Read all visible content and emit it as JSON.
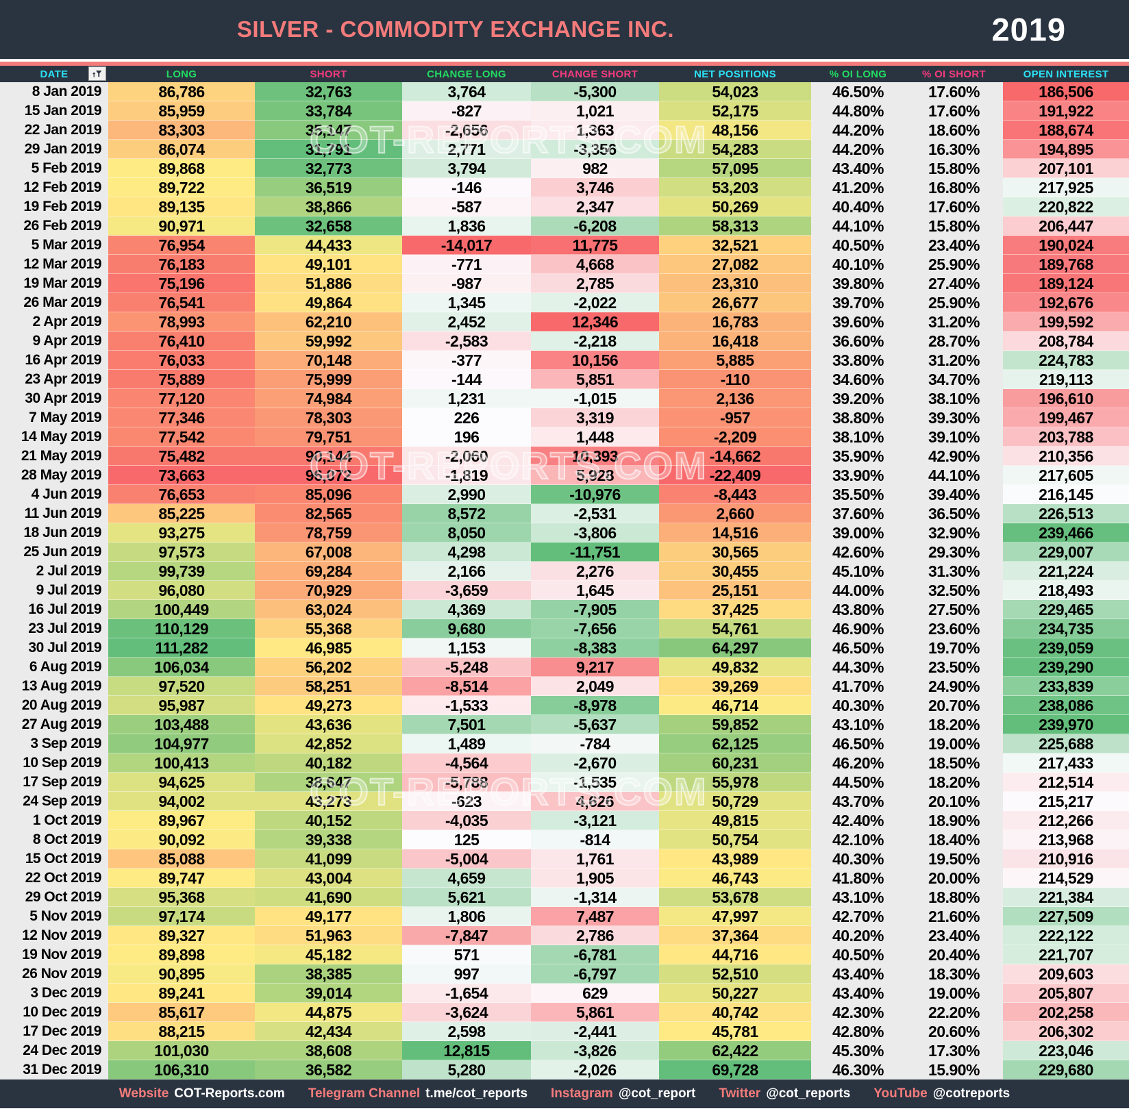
{
  "header": {
    "title": "SILVER - COMMODITY EXCHANGE INC.",
    "year": "2019"
  },
  "watermark": {
    "text": "COT-REPORTS.COM"
  },
  "colors": {
    "background_navy": "#2A3441",
    "accent_salmon": "#F47B7B",
    "column_grey": "#ECEBEB",
    "header_text_cyan": "#2BE2F5",
    "header_text_green": "#21DB61",
    "header_text_pink": "#F43A7C",
    "heatmap": {
      "red": "#F8696B",
      "yellow": "#FFEB84",
      "green": "#63BE7B",
      "white": "#FCFCFF"
    }
  },
  "icons": {
    "date_filter": "autofilter-funnel-icon"
  },
  "chart_data": {
    "type": "table",
    "title": "SILVER - COMMODITY EXCHANGE INC.",
    "year": "2019",
    "columns": [
      {
        "key": "date",
        "label": "DATE",
        "scale": "none",
        "header_color": "#2BE2F5"
      },
      {
        "key": "long",
        "label": "LONG",
        "scale": "red-yellow-green",
        "header_color": "#21DB61"
      },
      {
        "key": "short",
        "label": "SHORT",
        "scale": "green-yellow-red",
        "header_color": "#F43A7C"
      },
      {
        "key": "change_long",
        "label": "CHANGE LONG",
        "scale": "red-white-green",
        "header_color": "#21DB61"
      },
      {
        "key": "change_short",
        "label": "CHANGE SHORT",
        "scale": "green-white-red",
        "header_color": "#F43A7C"
      },
      {
        "key": "net_positions",
        "label": "NET POSITIONS",
        "scale": "red-yellow-green",
        "header_color": "#2BE2F5"
      },
      {
        "key": "pct_oi_long",
        "label": "% OI LONG",
        "scale": "none",
        "header_color": "#21DB61"
      },
      {
        "key": "pct_oi_short",
        "label": "% OI SHORT",
        "scale": "none",
        "header_color": "#F43A7C"
      },
      {
        "key": "open_interest",
        "label": "OPEN INTEREST",
        "scale": "red-white-green",
        "header_color": "#2BE2F5"
      }
    ],
    "rows": [
      [
        "8 Jan 2019",
        86786,
        32763,
        3764,
        -5300,
        54023,
        "46.50%",
        "17.60%",
        186506
      ],
      [
        "15 Jan 2019",
        85959,
        33784,
        -827,
        1021,
        52175,
        "44.80%",
        "17.60%",
        191922
      ],
      [
        "22 Jan 2019",
        83303,
        35147,
        -2656,
        1363,
        48156,
        "44.20%",
        "18.60%",
        188674
      ],
      [
        "29 Jan 2019",
        86074,
        31791,
        2771,
        -3356,
        54283,
        "44.20%",
        "16.30%",
        194895
      ],
      [
        "5 Feb 2019",
        89868,
        32773,
        3794,
        982,
        57095,
        "43.40%",
        "15.80%",
        207101
      ],
      [
        "12 Feb 2019",
        89722,
        36519,
        -146,
        3746,
        53203,
        "41.20%",
        "16.80%",
        217925
      ],
      [
        "19 Feb 2019",
        89135,
        38866,
        -587,
        2347,
        50269,
        "40.40%",
        "17.60%",
        220822
      ],
      [
        "26 Feb 2019",
        90971,
        32658,
        1836,
        -6208,
        58313,
        "44.10%",
        "15.80%",
        206447
      ],
      [
        "5 Mar 2019",
        76954,
        44433,
        -14017,
        11775,
        32521,
        "40.50%",
        "23.40%",
        190024
      ],
      [
        "12 Mar 2019",
        76183,
        49101,
        -771,
        4668,
        27082,
        "40.10%",
        "25.90%",
        189768
      ],
      [
        "19 Mar 2019",
        75196,
        51886,
        -987,
        2785,
        23310,
        "39.80%",
        "27.40%",
        189124
      ],
      [
        "26 Mar 2019",
        76541,
        49864,
        1345,
        -2022,
        26677,
        "39.70%",
        "25.90%",
        192676
      ],
      [
        "2 Apr 2019",
        78993,
        62210,
        2452,
        12346,
        16783,
        "39.60%",
        "31.20%",
        199592
      ],
      [
        "9 Apr 2019",
        76410,
        59992,
        -2583,
        -2218,
        16418,
        "36.60%",
        "28.70%",
        208784
      ],
      [
        "16 Apr 2019",
        76033,
        70148,
        -377,
        10156,
        5885,
        "33.80%",
        "31.20%",
        224783
      ],
      [
        "23 Apr 2019",
        75889,
        75999,
        -144,
        5851,
        -110,
        "34.60%",
        "34.70%",
        219113
      ],
      [
        "30 Apr 2019",
        77120,
        74984,
        1231,
        -1015,
        2136,
        "39.20%",
        "38.10%",
        196610
      ],
      [
        "7 May 2019",
        77346,
        78303,
        226,
        3319,
        -957,
        "38.80%",
        "39.30%",
        199467
      ],
      [
        "14 May 2019",
        77542,
        79751,
        196,
        1448,
        -2209,
        "38.10%",
        "39.10%",
        203788
      ],
      [
        "21 May 2019",
        75482,
        90144,
        -2060,
        10393,
        -14662,
        "35.90%",
        "42.90%",
        210356
      ],
      [
        "28 May 2019",
        73663,
        96072,
        -1819,
        5928,
        -22409,
        "33.90%",
        "44.10%",
        217605
      ],
      [
        "4 Jun 2019",
        76653,
        85096,
        2990,
        -10976,
        -8443,
        "35.50%",
        "39.40%",
        216145
      ],
      [
        "11 Jun 2019",
        85225,
        82565,
        8572,
        -2531,
        2660,
        "37.60%",
        "36.50%",
        226513
      ],
      [
        "18 Jun 2019",
        93275,
        78759,
        8050,
        -3806,
        14516,
        "39.00%",
        "32.90%",
        239466
      ],
      [
        "25 Jun 2019",
        97573,
        67008,
        4298,
        -11751,
        30565,
        "42.60%",
        "29.30%",
        229007
      ],
      [
        "2 Jul 2019",
        99739,
        69284,
        2166,
        2276,
        30455,
        "45.10%",
        "31.30%",
        221224
      ],
      [
        "9 Jul 2019",
        96080,
        70929,
        -3659,
        1645,
        25151,
        "44.00%",
        "32.50%",
        218493
      ],
      [
        "16 Jul 2019",
        100449,
        63024,
        4369,
        -7905,
        37425,
        "43.80%",
        "27.50%",
        229465
      ],
      [
        "23 Jul 2019",
        110129,
        55368,
        9680,
        -7656,
        54761,
        "46.90%",
        "23.60%",
        234735
      ],
      [
        "30 Jul 2019",
        111282,
        46985,
        1153,
        -8383,
        64297,
        "46.50%",
        "19.70%",
        239059
      ],
      [
        "6 Aug 2019",
        106034,
        56202,
        -5248,
        9217,
        49832,
        "44.30%",
        "23.50%",
        239290
      ],
      [
        "13 Aug 2019",
        97520,
        58251,
        -8514,
        2049,
        39269,
        "41.70%",
        "24.90%",
        233839
      ],
      [
        "20 Aug 2019",
        95987,
        49273,
        -1533,
        -8978,
        46714,
        "40.30%",
        "20.70%",
        238086
      ],
      [
        "27 Aug 2019",
        103488,
        43636,
        7501,
        -5637,
        59852,
        "43.10%",
        "18.20%",
        239970
      ],
      [
        "3 Sep 2019",
        104977,
        42852,
        1489,
        -784,
        62125,
        "46.50%",
        "19.00%",
        225688
      ],
      [
        "10 Sep 2019",
        100413,
        40182,
        -4564,
        -2670,
        60231,
        "46.20%",
        "18.50%",
        217433
      ],
      [
        "17 Sep 2019",
        94625,
        38647,
        -5788,
        -1535,
        55978,
        "44.50%",
        "18.20%",
        212514
      ],
      [
        "24 Sep 2019",
        94002,
        43273,
        -623,
        4626,
        50729,
        "43.70%",
        "20.10%",
        215217
      ],
      [
        "1 Oct 2019",
        89967,
        40152,
        -4035,
        -3121,
        49815,
        "42.40%",
        "18.90%",
        212266
      ],
      [
        "8 Oct 2019",
        90092,
        39338,
        125,
        -814,
        50754,
        "42.10%",
        "18.40%",
        213968
      ],
      [
        "15 Oct 2019",
        85088,
        41099,
        -5004,
        1761,
        43989,
        "40.30%",
        "19.50%",
        210916
      ],
      [
        "22 Oct 2019",
        89747,
        43004,
        4659,
        1905,
        46743,
        "41.80%",
        "20.00%",
        214529
      ],
      [
        "29 Oct 2019",
        95368,
        41690,
        5621,
        -1314,
        53678,
        "43.10%",
        "18.80%",
        221384
      ],
      [
        "5 Nov 2019",
        97174,
        49177,
        1806,
        7487,
        47997,
        "42.70%",
        "21.60%",
        227509
      ],
      [
        "12 Nov 2019",
        89327,
        51963,
        -7847,
        2786,
        37364,
        "40.20%",
        "23.40%",
        222122
      ],
      [
        "19 Nov 2019",
        89898,
        45182,
        571,
        -6781,
        44716,
        "40.50%",
        "20.40%",
        221707
      ],
      [
        "26 Nov 2019",
        90895,
        38385,
        997,
        -6797,
        52510,
        "43.40%",
        "18.30%",
        209603
      ],
      [
        "3 Dec 2019",
        89241,
        39014,
        -1654,
        629,
        50227,
        "43.40%",
        "19.00%",
        205807
      ],
      [
        "10 Dec 2019",
        85617,
        44875,
        -3624,
        5861,
        40742,
        "42.30%",
        "22.20%",
        202258
      ],
      [
        "17 Dec 2019",
        88215,
        42434,
        2598,
        -2441,
        45781,
        "42.80%",
        "20.60%",
        206302
      ],
      [
        "24 Dec 2019",
        101030,
        38608,
        12815,
        -3826,
        62422,
        "45.30%",
        "17.30%",
        223046
      ],
      [
        "31 Dec 2019",
        106310,
        36582,
        5280,
        -2026,
        69728,
        "46.30%",
        "15.90%",
        229680
      ]
    ]
  },
  "footer": {
    "items": [
      {
        "label": "Website",
        "value": "COT-Reports.com"
      },
      {
        "label": "Telegram Channel",
        "value": "t.me/cot_reports"
      },
      {
        "label": "Instagram",
        "value": "@cot_report"
      },
      {
        "label": "Twitter",
        "value": "@cot_reports"
      },
      {
        "label": "YouTube",
        "value": "@cotreports"
      }
    ]
  }
}
